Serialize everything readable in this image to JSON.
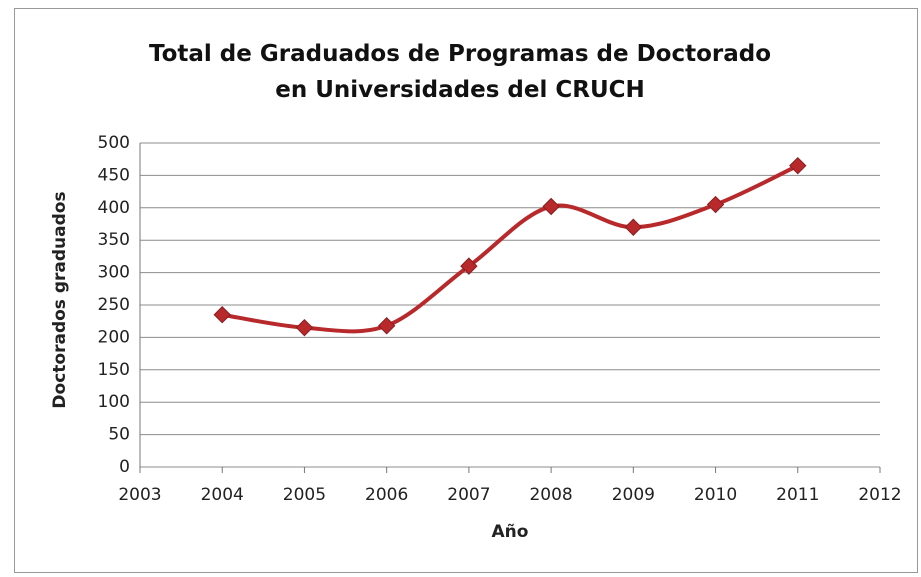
{
  "chart_data": {
    "type": "line",
    "title": "Total de Graduados de Programas de Doctorado en Universidades del CRUCH",
    "x_label": "Año",
    "y_label": "Doctorados graduados",
    "x": [
      2004,
      2005,
      2006,
      2007,
      2008,
      2009,
      2010,
      2011
    ],
    "values": [
      235,
      215,
      218,
      310,
      402,
      370,
      405,
      465
    ],
    "color": "#b8292b",
    "smooth": true,
    "grid": true,
    "xlim": [
      2003,
      2012
    ],
    "xticks": [
      2003,
      2004,
      2005,
      2006,
      2007,
      2008,
      2009,
      2010,
      2011,
      2012
    ],
    "ylim": [
      0,
      500
    ],
    "yticks": [
      0,
      50,
      100,
      150,
      200,
      250,
      300,
      350,
      400,
      450,
      500
    ]
  }
}
